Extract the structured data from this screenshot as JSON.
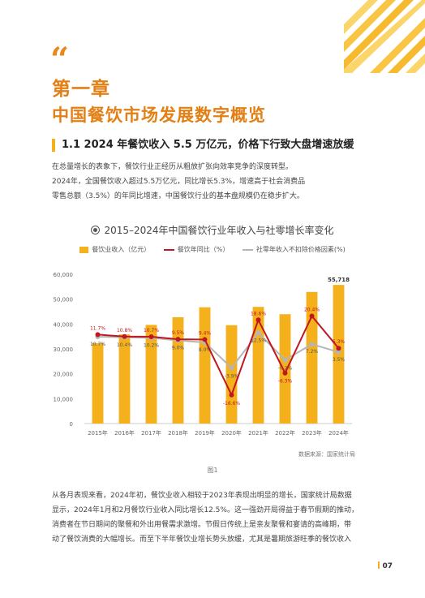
{
  "chapter": {
    "title": "第一章",
    "subtitle": "中国餐饮市场发展数字概览"
  },
  "section": {
    "heading": "1.1 2024 年餐饮收入 5.5 万亿元，价格下行致大盘增速放缓",
    "intro_lines": [
      "在总量增长的表象下，餐饮行业正经历从粗放扩张向效率竞争的深度转型。",
      "2024年，全国餐饮收入超过5.5万亿元，同比增长5.3%，增速高于社会消费品",
      "零售总额（3.5%）的年同比增速，中国餐饮行业的基本盘规模仍在稳步扩大。"
    ]
  },
  "figure": {
    "source": "数据来源：国家统计局",
    "caption": "图1"
  },
  "chart_data": {
    "type": "bar",
    "title": "2015–2024年中国餐饮行业年收入与社零增长率变化",
    "categories": [
      "2015年",
      "2016年",
      "2017年",
      "2018年",
      "2019年",
      "2020年",
      "2021年",
      "2022年",
      "2023年",
      "2024年"
    ],
    "series": [
      {
        "name": "餐饮业收入（亿元）",
        "type": "bar",
        "axis": "left",
        "values": [
          32310,
          35799,
          39644,
          42716,
          46721,
          39527,
          46895,
          43941,
          52890,
          55718
        ],
        "color": "#f5b11c"
      },
      {
        "name": "餐饮年同比（%）",
        "type": "line",
        "axis": "right",
        "values": [
          11.7,
          10.8,
          10.7,
          9.5,
          9.4,
          -16.6,
          18.6,
          -6.3,
          20.4,
          5.3
        ],
        "color": "#c0171f"
      },
      {
        "name": "社零年收入不扣除价格因素(%)",
        "type": "line",
        "axis": "right",
        "values": [
          10.7,
          10.4,
          10.2,
          9.0,
          8.0,
          -3.9,
          12.5,
          -0.2,
          7.2,
          3.5
        ],
        "color": "#b5b5b5"
      }
    ],
    "bar_top_label": "55,718",
    "line_labels": {
      "catering": [
        "11.7%",
        "10.8%",
        "10.7%",
        "9.5%",
        "9.4%",
        "-16.6%",
        "18.6%",
        "-6.3%",
        "20.4%",
        "5.3%"
      ],
      "retail": [
        "10.7%",
        "10.4%",
        "10.2%",
        "9.0%",
        "8.0%",
        "-3.9%",
        "12.5%",
        "-0.2%",
        "7.2%",
        "3.5%"
      ]
    },
    "y_ticks": [
      "60,000",
      "50,000",
      "40,000",
      "30,000",
      "20,000",
      "10,000",
      "0"
    ],
    "ylim": [
      0,
      60000
    ],
    "y2lim": [
      -30,
      40
    ],
    "grid": false,
    "legend_position": "top"
  },
  "body": {
    "lines": [
      "从各月表现来看，2024年初，餐饮业收入相较于2023年表现出明显的增长，国家统计局数据",
      "显示，2024年1月和2月餐饮行业收入同比增长12.5%。这一强劲开局得益于春节假期的推动，",
      "消费者在节日期间的聚餐和外出用餐需求激增。节假日传统上是亲友聚餐和宴请的高峰期，带",
      "动了餐饮消费的大幅增长。而至下半年餐饮业增长势头放缓，尤其是暑期旅游旺季的餐饮收入"
    ]
  },
  "page": {
    "number": "07"
  },
  "colors": {
    "accent": "#e37f14",
    "bar": "#f5b11c",
    "catering_line": "#c0171f",
    "retail_line": "#b5b5b5"
  }
}
